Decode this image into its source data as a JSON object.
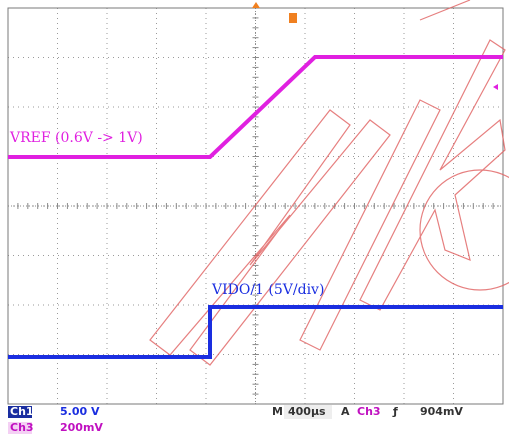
{
  "scope": {
    "traces": [
      {
        "label": "VREF (0.6V -> 1V)",
        "color": "#e020e0"
      },
      {
        "label": "VIDO/1 (5V/div)",
        "color": "#1a2ee0"
      }
    ],
    "status": {
      "ch1": {
        "name": "Ch1",
        "scale": "5.00 V"
      },
      "ch3": {
        "name": "Ch3",
        "scale": "200mV"
      },
      "timebase": {
        "prefix": "M",
        "value": "400µs"
      },
      "trigger": {
        "prefix": "A",
        "source": "Ch3",
        "slope": "ƒ",
        "level": "904mV"
      }
    }
  }
}
